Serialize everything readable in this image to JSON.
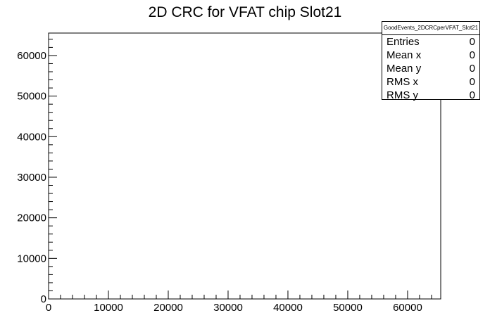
{
  "chart_data": {
    "type": "heatmap",
    "title": "2D CRC for VFAT chip Slot21",
    "xlabel": "",
    "ylabel": "",
    "xlim": [
      0,
      65536
    ],
    "ylim": [
      0,
      65536
    ],
    "x_ticks": [
      "0",
      "10000",
      "20000",
      "30000",
      "40000",
      "50000",
      "60000"
    ],
    "y_ticks": [
      "0",
      "10000",
      "20000",
      "30000",
      "40000",
      "50000",
      "60000"
    ],
    "values": [],
    "grid": false,
    "stats_box": {
      "name": "GoodEvents_2DCRCperVFAT_Slot21",
      "entries": [
        {
          "label": "Entries",
          "value": "0"
        },
        {
          "label": "Mean x",
          "value": "0"
        },
        {
          "label": "Mean y",
          "value": "0"
        },
        {
          "label": "RMS x",
          "value": "0"
        },
        {
          "label": "RMS y",
          "value": "0"
        }
      ],
      "placement": "top-right"
    }
  }
}
